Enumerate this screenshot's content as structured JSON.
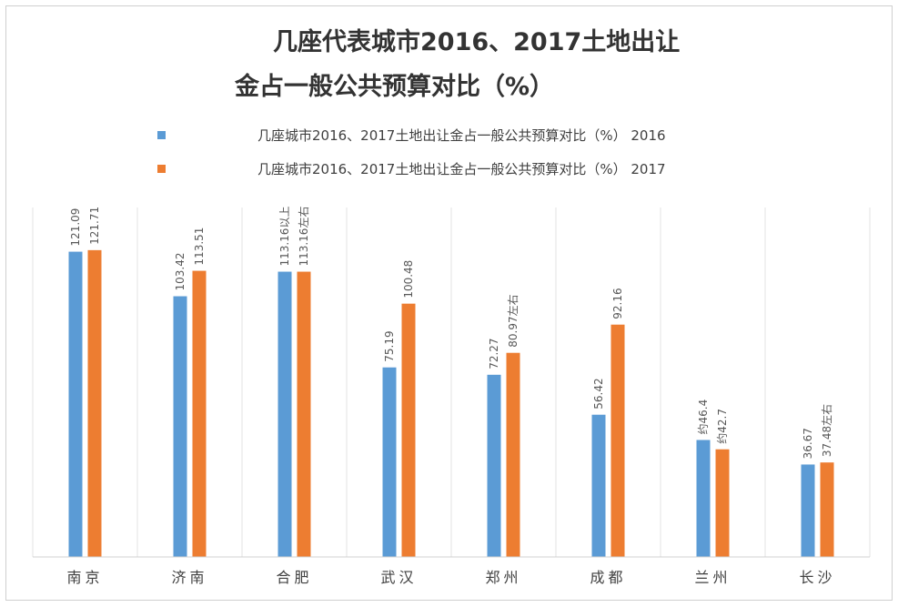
{
  "chart_data": {
    "type": "bar",
    "title_line1": "几座代表城市2016、2017土地出让",
    "title_line2": "金占一般公共预算对比（%）",
    "categories": [
      "南京",
      "济南",
      "合肥",
      "武汉",
      "郑州",
      "成都",
      "兰州",
      "长沙"
    ],
    "series": [
      {
        "name": "几座城市2016、2017土地出让金占一般公共预算对比（%） 2016",
        "color": "#5B9BD5",
        "values": [
          121.09,
          103.42,
          113.16,
          75.19,
          72.27,
          56.42,
          46.4,
          36.67
        ],
        "labels": [
          "121.09",
          "103.42",
          "113.16以上",
          "75.19",
          "72.27",
          "56.42",
          "约46.4",
          "36.67"
        ]
      },
      {
        "name": "几座城市2016、2017土地出让金占一般公共预算对比（%） 2017",
        "color": "#ED7D31",
        "values": [
          121.71,
          113.51,
          113.16,
          100.48,
          80.97,
          92.16,
          42.7,
          37.48
        ],
        "labels": [
          "121.71",
          "113.51",
          "113.16左右",
          "100.48",
          "80.97左右",
          "92.16",
          "约42.7",
          "37.48左右"
        ]
      }
    ],
    "ylim": [
      0,
      140
    ],
    "grid": false
  }
}
